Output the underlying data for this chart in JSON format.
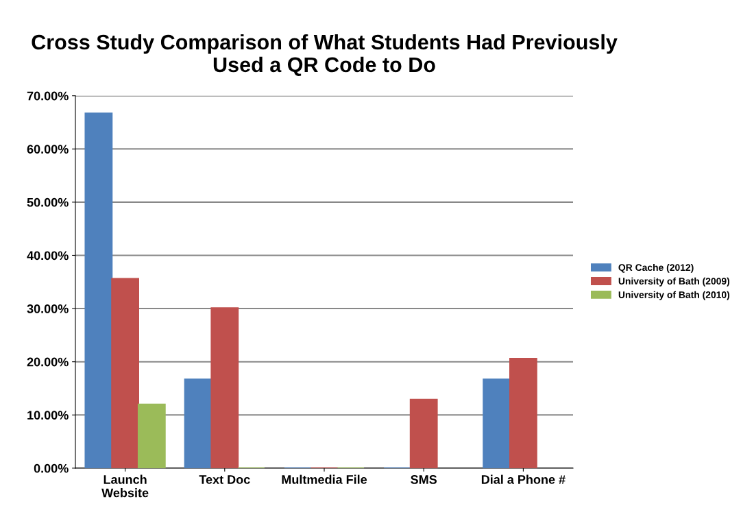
{
  "chart_data": {
    "type": "bar",
    "title": "Cross Study Comparison of What Students Had Previously\nUsed a QR Code to Do",
    "categories": [
      "Launch\nWebsite",
      "Text Doc",
      "Multmedia File",
      "SMS",
      "Dial a Phone #"
    ],
    "series": [
      {
        "name": "QR Cache (2012)",
        "color": "#4f81bd",
        "values": [
          66.7,
          16.7,
          0,
          0,
          16.7
        ]
      },
      {
        "name": "University of Bath (2009)",
        "color": "#c0504d",
        "values": [
          35.6,
          30.1,
          0,
          12.9,
          20.6
        ]
      },
      {
        "name": "University of Bath (2010)",
        "color": "#9bbb59",
        "values": [
          12.0,
          0,
          0,
          null,
          null
        ]
      }
    ],
    "ylim": [
      0,
      70
    ],
    "yticks": [
      {
        "value": 0,
        "label": "0.00%"
      },
      {
        "value": 10,
        "label": "10.00%"
      },
      {
        "value": 20,
        "label": "20.00%"
      },
      {
        "value": 30,
        "label": "30.00%"
      },
      {
        "value": 40,
        "label": "40.00%"
      },
      {
        "value": 50,
        "label": "50.00%"
      },
      {
        "value": 60,
        "label": "60.00%"
      },
      {
        "value": 70,
        "label": "70.00%"
      }
    ],
    "grid": "y",
    "legend": "right"
  }
}
